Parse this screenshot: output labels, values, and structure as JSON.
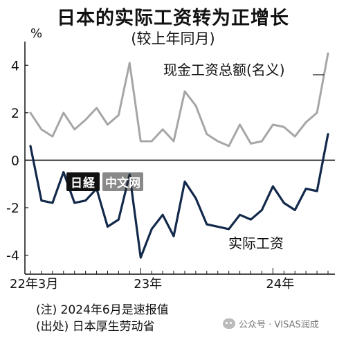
{
  "title": "日本的实际工资转为正增长",
  "subtitle": "(较上年同月)",
  "notes": [
    "(注) 2024年6月是速报值",
    "(出处) 日本厚生劳动省"
  ],
  "watermark": {
    "logo": "日経",
    "tag": "中文网",
    "wechat": "公众号 · VISAS润成"
  },
  "colors": {
    "nominal": "#a6a6a6",
    "real": "#13294b"
  },
  "chart_data": {
    "type": "line",
    "unit": "%",
    "ylim": [
      -4.8,
      5
    ],
    "yticks": [
      4,
      2,
      0,
      -2,
      -4
    ],
    "xtick_labels": [
      "22年3月",
      "23年",
      "24年"
    ],
    "x": [
      "2022-03",
      "2022-04",
      "2022-05",
      "2022-06",
      "2022-07",
      "2022-08",
      "2022-09",
      "2022-10",
      "2022-11",
      "2022-12",
      "2023-01",
      "2023-02",
      "2023-03",
      "2023-04",
      "2023-05",
      "2023-06",
      "2023-07",
      "2023-08",
      "2023-09",
      "2023-10",
      "2023-11",
      "2023-12",
      "2024-01",
      "2024-02",
      "2024-03",
      "2024-04",
      "2024-05",
      "2024-06"
    ],
    "series": [
      {
        "name": "现金工资总额(名义)",
        "values": [
          2.0,
          1.3,
          1.0,
          2.0,
          1.3,
          1.7,
          2.2,
          1.5,
          1.9,
          4.1,
          0.8,
          0.8,
          1.3,
          0.8,
          2.9,
          2.3,
          1.1,
          0.8,
          0.6,
          1.5,
          0.7,
          0.8,
          1.5,
          1.4,
          1.0,
          1.6,
          2.0,
          4.5
        ]
      },
      {
        "name": "实际工资",
        "values": [
          0.6,
          -1.7,
          -1.8,
          -0.5,
          -1.8,
          -1.7,
          -1.2,
          -2.8,
          -2.5,
          -0.6,
          -4.1,
          -2.9,
          -2.3,
          -3.2,
          -0.9,
          -1.6,
          -2.7,
          -2.8,
          -2.9,
          -2.3,
          -2.5,
          -2.1,
          -1.1,
          -1.8,
          -2.1,
          -1.2,
          -1.3,
          1.1
        ]
      }
    ]
  }
}
